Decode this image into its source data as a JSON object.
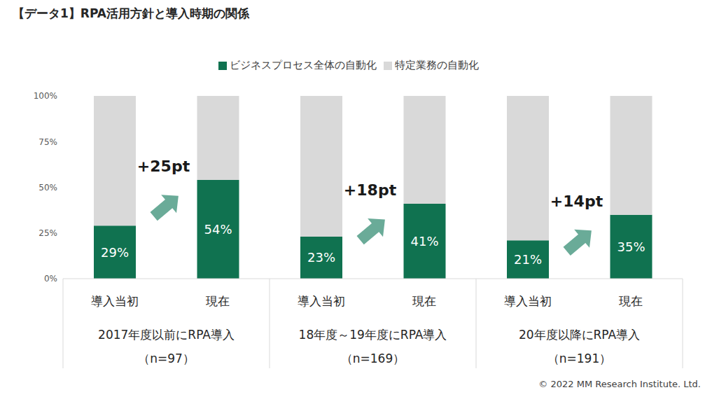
{
  "chart_data": {
    "type": "bar",
    "title": "【データ1】RPA活用方針と導入時期の関係",
    "stacked": true,
    "legend": "top",
    "grid": false,
    "categories": [
      "導入当初",
      "現在",
      "導入当初",
      "現在",
      "導入当初",
      "現在"
    ],
    "groups": [
      {
        "label": "2017年度以前にRPA導入",
        "n": "（n=97）"
      },
      {
        "label": "18年度～19年度にRPA導入",
        "n": "（n=169）"
      },
      {
        "label": "20年度以降にRPA導入",
        "n": "（n=191）"
      }
    ],
    "series": [
      {
        "name": "ビジネスプロセス全体の自動化",
        "color": "#107250",
        "values": [
          29,
          54,
          23,
          41,
          21,
          35
        ],
        "data_labels": true,
        "value_labels": [
          "29%",
          "54%",
          "23%",
          "41%",
          "21%",
          "35%"
        ]
      },
      {
        "name": "特定業務の自動化",
        "color": "#d9d9d9",
        "values": [
          71,
          46,
          77,
          59,
          79,
          65
        ],
        "data_labels": false
      }
    ],
    "ylim": [
      0,
      100
    ],
    "yticks": [
      {
        "value": 0,
        "label": "0%"
      },
      {
        "value": 25,
        "label": "25%"
      },
      {
        "value": 50,
        "label": "50%"
      },
      {
        "value": 75,
        "label": "75%"
      },
      {
        "value": 100,
        "label": "100%"
      }
    ],
    "annotations": [
      "+25pt",
      "+18pt",
      "+14pt"
    ],
    "caption": "© 2022 MM Research Institute. Ltd."
  }
}
